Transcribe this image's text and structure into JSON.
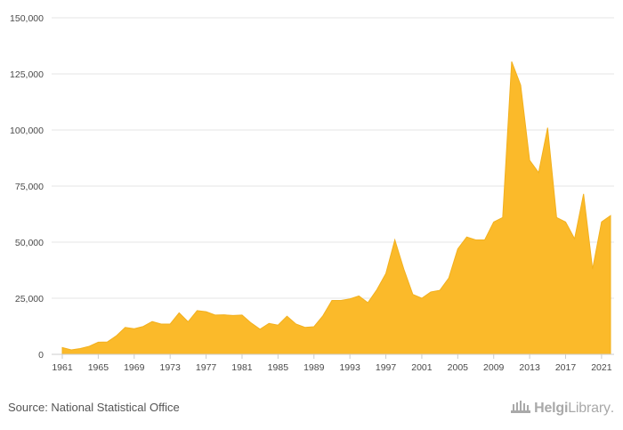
{
  "source_text": "Source: National Statistical Office",
  "logo": {
    "part1": "Helgi",
    "part2": "Library",
    "dot": "."
  },
  "colors": {
    "area": "#FBBA2A",
    "area_stroke": "#F2B01E",
    "grid": "#e6e6e6",
    "axis_text": "#4a4a4a"
  },
  "chart_data": {
    "type": "area",
    "title": "",
    "xlabel": "",
    "ylabel": "",
    "ylim": [
      0,
      150000
    ],
    "xlim": [
      1961,
      2022
    ],
    "yticks": [
      0,
      25000,
      50000,
      75000,
      100000,
      125000,
      150000
    ],
    "ytick_labels": [
      "0",
      "25,000",
      "50,000",
      "75,000",
      "100,000",
      "125,000",
      "150,000"
    ],
    "xticks": [
      1961,
      1965,
      1969,
      1973,
      1977,
      1981,
      1985,
      1989,
      1993,
      1997,
      2001,
      2005,
      2009,
      2013,
      2017,
      2021
    ],
    "grid": true,
    "legend": "none",
    "x": [
      1961,
      1962,
      1963,
      1964,
      1965,
      1966,
      1967,
      1968,
      1969,
      1970,
      1971,
      1972,
      1973,
      1974,
      1975,
      1976,
      1977,
      1978,
      1979,
      1980,
      1981,
      1982,
      1983,
      1984,
      1985,
      1986,
      1987,
      1988,
      1989,
      1990,
      1991,
      1992,
      1993,
      1994,
      1995,
      1996,
      1997,
      1998,
      1999,
      2000,
      2001,
      2002,
      2003,
      2004,
      2005,
      2006,
      2007,
      2008,
      2009,
      2010,
      2011,
      2012,
      2013,
      2014,
      2015,
      2016,
      2017,
      2018,
      2019,
      2020,
      2021,
      2022
    ],
    "values": [
      3000,
      2000,
      2600,
      3600,
      5400,
      5500,
      8200,
      12000,
      11400,
      12400,
      14600,
      13500,
      13500,
      18500,
      14500,
      19500,
      19000,
      17500,
      17600,
      17300,
      17500,
      14000,
      11200,
      13800,
      13000,
      17000,
      13500,
      12000,
      12300,
      17200,
      24000,
      24000,
      24700,
      26000,
      23000,
      28800,
      36000,
      51000,
      38000,
      26700,
      25000,
      27800,
      28500,
      34000,
      47000,
      52300,
      51000,
      51000,
      59000,
      61000,
      130500,
      120000,
      86500,
      81000,
      101000,
      61000,
      59000,
      51500,
      71500,
      38000,
      59000,
      61800
    ]
  }
}
